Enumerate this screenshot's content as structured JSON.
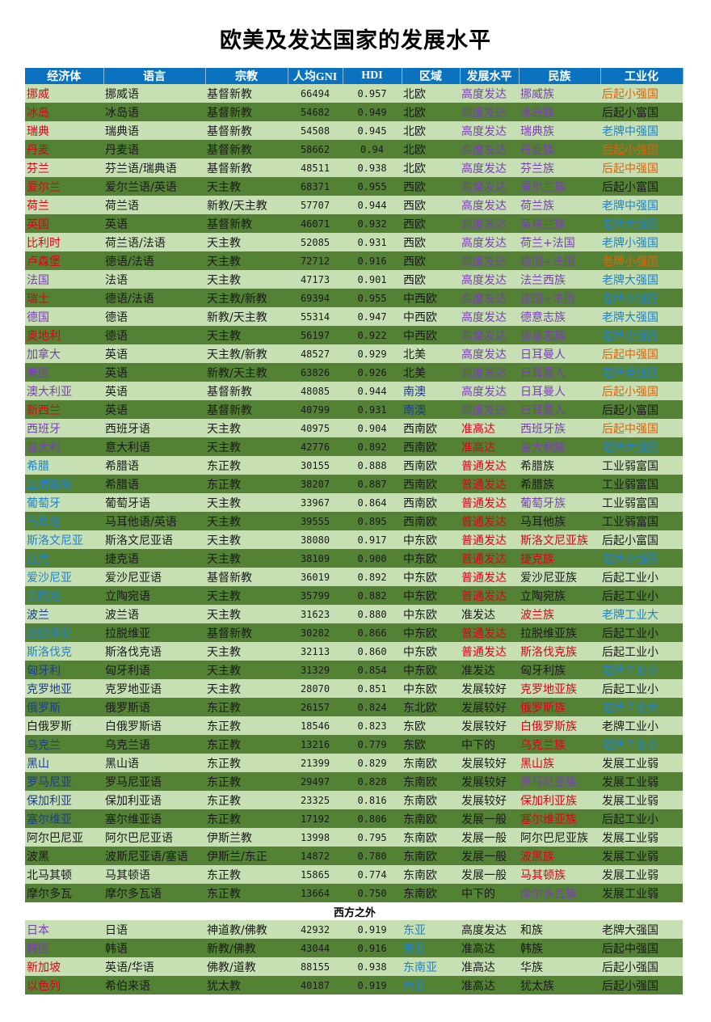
{
  "title": "欧美及发达国家的发展水平",
  "headers": [
    "经济体",
    "语言",
    "宗教",
    "人均GNI",
    "HDI",
    "区域",
    "发展水平",
    "民族",
    "工业化"
  ],
  "section_label": "西方之外",
  "colors": {
    "header_bg": "#0b72c0",
    "row_light": "#c6e0b4",
    "row_dark": "#548235",
    "red": "#e0001a",
    "orange": "#e5600a",
    "blue": "#1f82d0",
    "navy": "#1f3a93",
    "purple": "#7b3fb5",
    "dark": "#1a1a1a"
  },
  "rows": [
    [
      "挪威",
      "挪威语",
      "基督新教",
      "66494",
      "0.957",
      "北欧",
      "高度发达",
      "挪威族",
      "后起小强国"
    ],
    [
      "冰岛",
      "冰岛语",
      "基督新教",
      "54682",
      "0.949",
      "北欧",
      "高度发达",
      "冰岛族",
      "后起小富国"
    ],
    [
      "瑞典",
      "瑞典语",
      "基督新教",
      "54508",
      "0.945",
      "北欧",
      "高度发达",
      "瑞典族",
      "老牌中强国"
    ],
    [
      "丹麦",
      "丹麦语",
      "基督新教",
      "58662",
      "0.94",
      "北欧",
      "高度发达",
      "丹麦族",
      "后起小强国"
    ],
    [
      "芬兰",
      "芬兰语/瑞典语",
      "基督新教",
      "48511",
      "0.938",
      "北欧",
      "高度发达",
      "芬兰族",
      "后起中强国"
    ],
    [
      "爱尔兰",
      "爱尔兰语/英语",
      "天主教",
      "68371",
      "0.955",
      "西欧",
      "高度发达",
      "爱尔兰族",
      "后起小富国"
    ],
    [
      "荷兰",
      "荷兰语",
      "新教/天主教",
      "57707",
      "0.944",
      "西欧",
      "高度发达",
      "荷兰族",
      "老牌中强国"
    ],
    [
      "英国",
      "英语",
      "基督新教",
      "46071",
      "0.932",
      "西欧",
      "高度发达",
      "英格兰族",
      "老牌大强国"
    ],
    [
      "比利时",
      "荷兰语/法语",
      "天主教",
      "52085",
      "0.931",
      "西欧",
      "高度发达",
      "荷兰+法国",
      "老牌小强国"
    ],
    [
      "卢森堡",
      "德语/法语",
      "天主教",
      "72712",
      "0.916",
      "西欧",
      "高度发达",
      "德国+法国",
      "老牌小强国"
    ],
    [
      "法国",
      "法语",
      "天主教",
      "47173",
      "0.901",
      "西欧",
      "高度发达",
      "法兰西族",
      "老牌大强国"
    ],
    [
      "瑞士",
      "德语/法语",
      "天主教/新教",
      "69394",
      "0.955",
      "中西欧",
      "高度发达",
      "德国+法国",
      "老牌小强国"
    ],
    [
      "德国",
      "德语",
      "新教/天主教",
      "55314",
      "0.947",
      "中西欧",
      "高度发达",
      "德意志族",
      "老牌大强国"
    ],
    [
      "奥地利",
      "德语",
      "天主教",
      "56197",
      "0.922",
      "中西欧",
      "高度发达",
      "德意志族",
      "老牌小强国"
    ],
    [
      "加拿大",
      "英语",
      "天主教/新教",
      "48527",
      "0.929",
      "北美",
      "高度发达",
      "日耳曼人",
      "后起中强国"
    ],
    [
      "美国",
      "英语",
      "新教/天主教",
      "63826",
      "0.926",
      "北美",
      "高度发达",
      "日耳曼人",
      "老牌巨强国"
    ],
    [
      "澳大利亚",
      "英语",
      "基督新教",
      "48085",
      "0.944",
      "南澳",
      "高度发达",
      "日耳曼人",
      "后起小强国"
    ],
    [
      "新西兰",
      "英语",
      "基督新教",
      "40799",
      "0.931",
      "南澳",
      "高度发达",
      "日耳曼人",
      "后起小富国"
    ],
    [
      "西班牙",
      "西班牙语",
      "天主教",
      "40975",
      "0.904",
      "西南欧",
      "准高达",
      "西班牙族",
      "后起中强国"
    ],
    [
      "意大利",
      "意大利语",
      "天主教",
      "42776",
      "0.892",
      "西南欧",
      "准高达",
      "意大利族",
      "老牌大强国"
    ],
    [
      "希腊",
      "希腊语",
      "东正教",
      "30155",
      "0.888",
      "西南欧",
      "普通发达",
      "希腊族",
      "工业弱富国"
    ],
    [
      "塞浦路斯",
      "希腊语",
      "东正教",
      "38207",
      "0.887",
      "西南欧",
      "普通发达",
      "希腊族",
      "工业弱富国"
    ],
    [
      "葡萄牙",
      "葡萄牙语",
      "天主教",
      "33967",
      "0.864",
      "西南欧",
      "普通发达",
      "葡萄牙族",
      "工业弱富国"
    ],
    [
      "马耳他",
      "马耳他语/英语",
      "天主教",
      "39555",
      "0.895",
      "西南欧",
      "普通发达",
      "马耳他族",
      "工业弱富国"
    ],
    [
      "斯洛文尼亚",
      "斯洛文尼亚语",
      "天主教",
      "38080",
      "0.917",
      "中东欧",
      "普通发达",
      "斯洛文尼亚族",
      "后起小富国"
    ],
    [
      "捷克",
      "捷克语",
      "天主教",
      "38109",
      "0.900",
      "中东欧",
      "普通发达",
      "捷克族",
      "老牌小强国"
    ],
    [
      "爱沙尼亚",
      "爱沙尼亚语",
      "基督新教",
      "36019",
      "0.892",
      "中东欧",
      "普通发达",
      "爱沙尼亚族",
      "后起工业小"
    ],
    [
      "立陶宛",
      "立陶宛语",
      "天主教",
      "35799",
      "0.882",
      "中东欧",
      "普通发达",
      "立陶宛族",
      "后起工业小"
    ],
    [
      "波兰",
      "波兰语",
      "天主教",
      "31623",
      "0.880",
      "中东欧",
      "准发达",
      "波兰族",
      "老牌工业大"
    ],
    [
      "拉脱维亚",
      "拉脱维亚",
      "基督新教",
      "30282",
      "0.866",
      "中东欧",
      "普通发达",
      "拉脱维亚族",
      "后起工业小"
    ],
    [
      "斯洛伐克",
      "斯洛伐克语",
      "天主教",
      "32113",
      "0.860",
      "中东欧",
      "普通发达",
      "斯洛伐克族",
      "后起工业小"
    ],
    [
      "匈牙利",
      "匈牙利语",
      "天主教",
      "31329",
      "0.854",
      "中东欧",
      "准发达",
      "匈牙利族",
      "老牌工业小"
    ],
    [
      "克罗地亚",
      "克罗地亚语",
      "天主教",
      "28070",
      "0.851",
      "中东欧",
      "发展较好",
      "克罗地亚族",
      "后起工业小"
    ],
    [
      "俄罗斯",
      "俄罗斯语",
      "东正教",
      "26157",
      "0.824",
      "东北欧",
      "发展较好",
      "俄罗斯族",
      "老牌工业大"
    ],
    [
      "白俄罗斯",
      "白俄罗斯语",
      "东正教",
      "18546",
      "0.823",
      "东欧",
      "发展较好",
      "白俄罗斯族",
      "老牌工业小"
    ],
    [
      "乌克兰",
      "乌克兰语",
      "东正教",
      "13216",
      "0.779",
      "东欧",
      "中下的",
      "乌克兰族",
      "老牌工业小"
    ],
    [
      "黑山",
      "黑山语",
      "东正教",
      "21399",
      "0.829",
      "东南欧",
      "发展较好",
      "黑山族",
      "发展工业弱"
    ],
    [
      "罗马尼亚",
      "罗马尼亚语",
      "东正教",
      "29497",
      "0.828",
      "东南欧",
      "发展较好",
      "罗马尼亚族",
      "发展工业弱"
    ],
    [
      "保加利亚",
      "保加利亚语",
      "东正教",
      "23325",
      "0.816",
      "东南欧",
      "发展较好",
      "保加利亚族",
      "发展工业弱"
    ],
    [
      "塞尔维亚",
      "塞尔维亚语",
      "东正教",
      "17192",
      "0.806",
      "东南欧",
      "发展一般",
      "塞尔维亚族",
      "后起工业小"
    ],
    [
      "阿尔巴尼亚",
      "阿尔巴尼亚语",
      "伊斯兰教",
      "13998",
      "0.795",
      "东南欧",
      "发展一般",
      "阿尔巴尼亚族",
      "发展工业弱"
    ],
    [
      "波黑",
      "波斯尼亚语/塞语",
      "伊斯兰/东正",
      "14872",
      "0.780",
      "东南欧",
      "发展一般",
      "波黑族",
      "发展工业弱"
    ],
    [
      "北马其顿",
      "马其顿语",
      "东正教",
      "15865",
      "0.774",
      "东南欧",
      "发展一般",
      "马其顿族",
      "发展工业弱"
    ],
    [
      "摩尔多瓦",
      "摩尔多瓦语",
      "东正教",
      "13664",
      "0.750",
      "东南欧",
      "中下的",
      "摩尔多瓦族",
      "发展工业弱"
    ]
  ],
  "rows_outside": [
    [
      "日本",
      "日语",
      "神道教/佛教",
      "42932",
      "0.919",
      "东亚",
      "高度发达",
      "和族",
      "老牌大强国"
    ],
    [
      "韩国",
      "韩语",
      "新教/佛教",
      "43044",
      "0.916",
      "东亚",
      "准高达",
      "韩族",
      "后起中强国"
    ],
    [
      "新加坡",
      "英语/华语",
      "佛教/道教",
      "88155",
      "0.938",
      "东南亚",
      "准高达",
      "华族",
      "后起小强国"
    ],
    [
      "以色列",
      "希伯来语",
      "犹太教",
      "40187",
      "0.919",
      "西亚",
      "准高达",
      "犹太族",
      "后起小强国"
    ]
  ],
  "cell_colors": {
    "rows": [
      [
        "red",
        "dark",
        "dark",
        "dark",
        "dark",
        "dark",
        "purple",
        "purple",
        "orange"
      ],
      [
        "red",
        "dark",
        "dark",
        "dark",
        "dark",
        "dark",
        "purple",
        "purple",
        "dark"
      ],
      [
        "red",
        "dark",
        "dark",
        "dark",
        "dark",
        "dark",
        "purple",
        "purple",
        "blue"
      ],
      [
        "red",
        "dark",
        "dark",
        "dark",
        "dark",
        "dark",
        "purple",
        "purple",
        "orange"
      ],
      [
        "red",
        "dark",
        "dark",
        "dark",
        "dark",
        "dark",
        "purple",
        "purple",
        "orange"
      ],
      [
        "red",
        "dark",
        "dark",
        "dark",
        "dark",
        "dark",
        "purple",
        "purple",
        "dark"
      ],
      [
        "red",
        "dark",
        "dark",
        "dark",
        "dark",
        "dark",
        "purple",
        "purple",
        "blue"
      ],
      [
        "red",
        "dark",
        "dark",
        "dark",
        "dark",
        "dark",
        "purple",
        "purple",
        "blue"
      ],
      [
        "red",
        "dark",
        "dark",
        "dark",
        "dark",
        "dark",
        "purple",
        "purple",
        "blue"
      ],
      [
        "red",
        "dark",
        "dark",
        "dark",
        "dark",
        "dark",
        "purple",
        "purple",
        "orange"
      ],
      [
        "purple",
        "dark",
        "dark",
        "dark",
        "dark",
        "dark",
        "purple",
        "purple",
        "blue"
      ],
      [
        "red",
        "dark",
        "dark",
        "dark",
        "dark",
        "dark",
        "purple",
        "purple",
        "blue"
      ],
      [
        "purple",
        "dark",
        "dark",
        "dark",
        "dark",
        "dark",
        "purple",
        "purple",
        "blue"
      ],
      [
        "red",
        "dark",
        "dark",
        "dark",
        "dark",
        "dark",
        "purple",
        "purple",
        "blue"
      ],
      [
        "purple",
        "dark",
        "dark",
        "dark",
        "dark",
        "dark",
        "purple",
        "purple",
        "orange"
      ],
      [
        "purple",
        "dark",
        "dark",
        "dark",
        "dark",
        "dark",
        "purple",
        "purple",
        "blue"
      ],
      [
        "purple",
        "dark",
        "dark",
        "dark",
        "dark",
        "navy",
        "purple",
        "purple",
        "orange"
      ],
      [
        "red",
        "dark",
        "dark",
        "dark",
        "dark",
        "navy",
        "purple",
        "purple",
        "dark"
      ],
      [
        "purple",
        "dark",
        "dark",
        "dark",
        "dark",
        "dark",
        "red",
        "purple",
        "orange"
      ],
      [
        "purple",
        "dark",
        "dark",
        "dark",
        "dark",
        "dark",
        "red",
        "purple",
        "blue"
      ],
      [
        "blue",
        "dark",
        "dark",
        "dark",
        "dark",
        "dark",
        "red",
        "dark",
        "dark"
      ],
      [
        "blue",
        "dark",
        "dark",
        "dark",
        "dark",
        "dark",
        "red",
        "dark",
        "dark"
      ],
      [
        "blue",
        "dark",
        "dark",
        "dark",
        "dark",
        "dark",
        "red",
        "purple",
        "dark"
      ],
      [
        "blue",
        "dark",
        "dark",
        "dark",
        "dark",
        "dark",
        "red",
        "dark",
        "dark"
      ],
      [
        "blue",
        "dark",
        "dark",
        "dark",
        "dark",
        "dark",
        "red",
        "red",
        "dark"
      ],
      [
        "blue",
        "dark",
        "dark",
        "dark",
        "dark",
        "dark",
        "red",
        "red",
        "blue"
      ],
      [
        "blue",
        "dark",
        "dark",
        "dark",
        "dark",
        "dark",
        "red",
        "dark",
        "dark"
      ],
      [
        "blue",
        "dark",
        "dark",
        "dark",
        "dark",
        "dark",
        "red",
        "dark",
        "dark"
      ],
      [
        "navy",
        "dark",
        "dark",
        "dark",
        "dark",
        "dark",
        "dark",
        "red",
        "blue"
      ],
      [
        "blue",
        "dark",
        "dark",
        "dark",
        "dark",
        "dark",
        "red",
        "dark",
        "dark"
      ],
      [
        "blue",
        "dark",
        "dark",
        "dark",
        "dark",
        "dark",
        "red",
        "red",
        "dark"
      ],
      [
        "navy",
        "dark",
        "dark",
        "dark",
        "dark",
        "dark",
        "dark",
        "dark",
        "blue"
      ],
      [
        "navy",
        "dark",
        "dark",
        "dark",
        "dark",
        "dark",
        "dark",
        "red",
        "dark"
      ],
      [
        "navy",
        "dark",
        "dark",
        "dark",
        "dark",
        "dark",
        "dark",
        "red",
        "blue"
      ],
      [
        "dark",
        "dark",
        "dark",
        "dark",
        "dark",
        "dark",
        "dark",
        "red",
        "dark"
      ],
      [
        "navy",
        "dark",
        "dark",
        "dark",
        "dark",
        "dark",
        "dark",
        "red",
        "blue"
      ],
      [
        "navy",
        "dark",
        "dark",
        "dark",
        "dark",
        "dark",
        "dark",
        "red",
        "dark"
      ],
      [
        "navy",
        "dark",
        "dark",
        "dark",
        "dark",
        "dark",
        "dark",
        "purple",
        "dark"
      ],
      [
        "navy",
        "dark",
        "dark",
        "dark",
        "dark",
        "dark",
        "dark",
        "red",
        "dark"
      ],
      [
        "navy",
        "dark",
        "dark",
        "dark",
        "dark",
        "dark",
        "dark",
        "red",
        "dark"
      ],
      [
        "dark",
        "dark",
        "dark",
        "dark",
        "dark",
        "dark",
        "dark",
        "dark",
        "dark"
      ],
      [
        "dark",
        "dark",
        "dark",
        "dark",
        "dark",
        "dark",
        "dark",
        "red",
        "dark"
      ],
      [
        "dark",
        "dark",
        "dark",
        "dark",
        "dark",
        "dark",
        "dark",
        "red",
        "dark"
      ],
      [
        "dark",
        "dark",
        "dark",
        "dark",
        "dark",
        "dark",
        "dark",
        "purple",
        "dark"
      ]
    ],
    "rows_outside": [
      [
        "purple",
        "dark",
        "dark",
        "dark",
        "dark",
        "blue",
        "dark",
        "dark",
        "dark"
      ],
      [
        "purple",
        "dark",
        "dark",
        "dark",
        "dark",
        "blue",
        "dark",
        "dark",
        "dark"
      ],
      [
        "red",
        "dark",
        "dark",
        "dark",
        "dark",
        "blue",
        "dark",
        "dark",
        "dark"
      ],
      [
        "red",
        "dark",
        "dark",
        "dark",
        "dark",
        "blue",
        "dark",
        "dark",
        "dark"
      ]
    ]
  }
}
